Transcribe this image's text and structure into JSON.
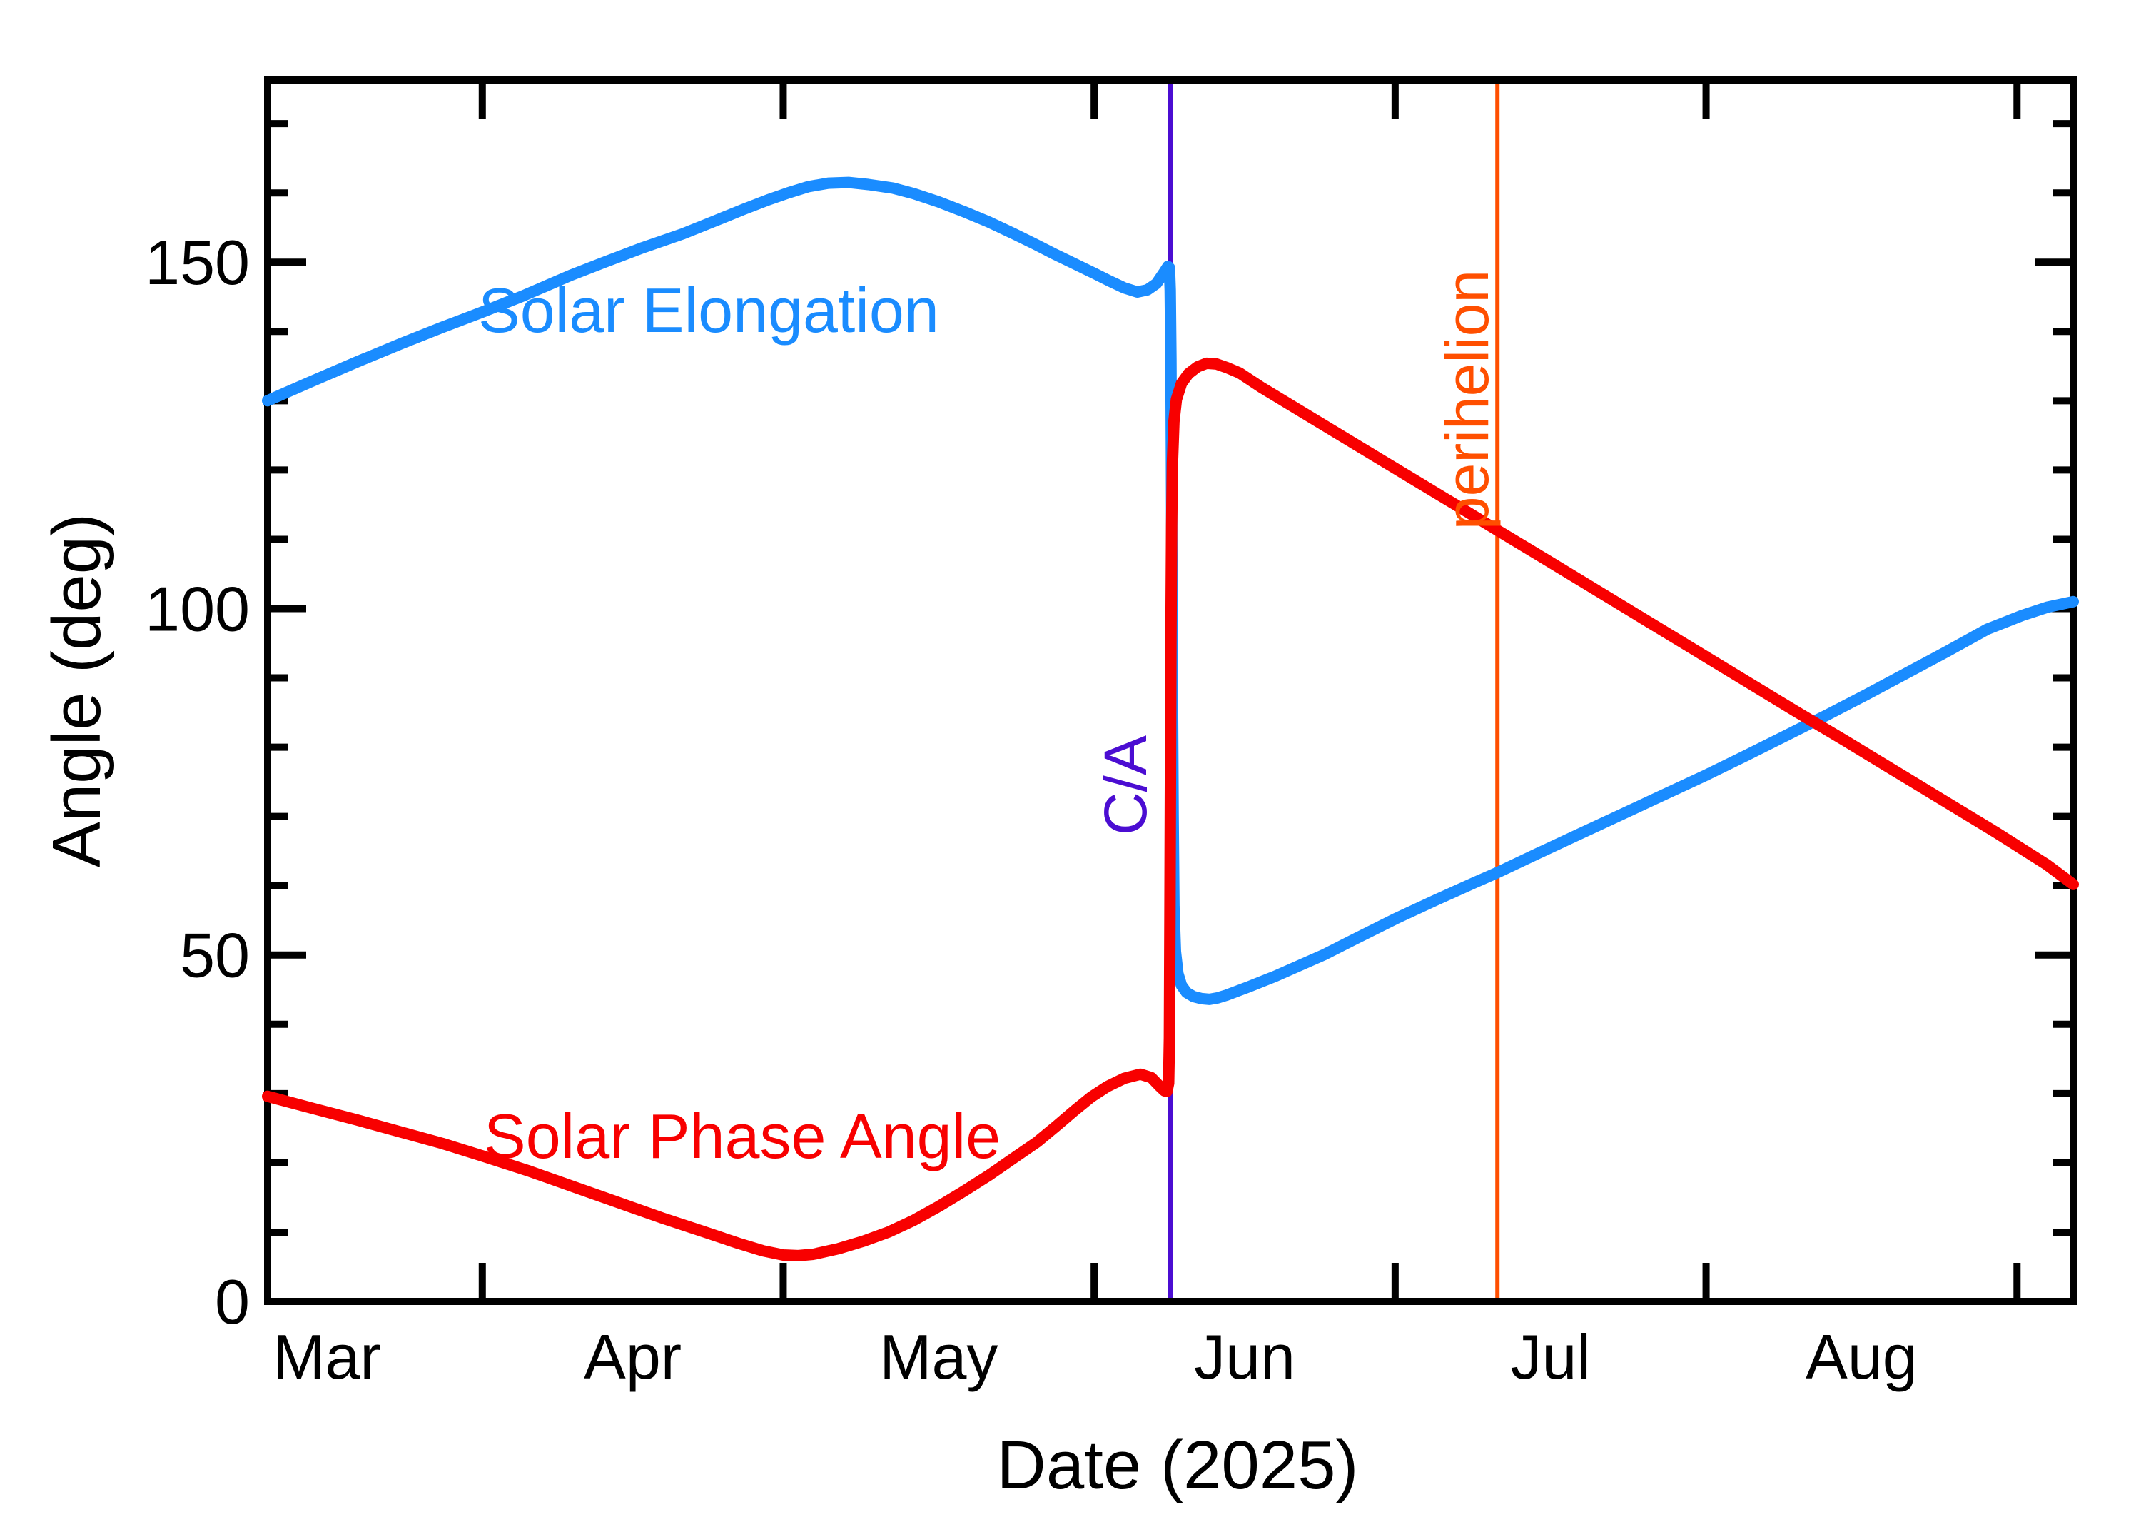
{
  "chart_data": {
    "type": "line",
    "title": "",
    "xlabel": "Date (2025)",
    "ylabel": "Angle (deg)",
    "x_unit": "days since 2025-03-01",
    "x_range_days": [
      9.6,
      189.6
    ],
    "ylim": [
      0,
      176.3
    ],
    "grid": "off",
    "legend_position": "inline-curve-labels",
    "background_color": "#ffffff",
    "axis_color": "#000000",
    "y_major_ticks": [
      0,
      50,
      100,
      150
    ],
    "y_major_tick_labels": [
      "0",
      "50",
      "100",
      "150"
    ],
    "y_minor_ticks": [
      10,
      20,
      30,
      40,
      60,
      70,
      80,
      90,
      110,
      120,
      130,
      140,
      160,
      170
    ],
    "month_boundary_days": [
      31,
      61,
      92,
      122,
      153,
      184
    ],
    "month_labels": [
      {
        "label": "Mar",
        "mid_day": 15.5
      },
      {
        "label": "Apr",
        "mid_day": 46
      },
      {
        "label": "May",
        "mid_day": 76.5
      },
      {
        "label": "Jun",
        "mid_day": 107
      },
      {
        "label": "Jul",
        "mid_day": 137.5
      },
      {
        "label": "Aug",
        "mid_day": 168.5
      }
    ],
    "events": [
      {
        "label": "C/A",
        "day": 99.6,
        "color": "#4b0dd2"
      },
      {
        "label": "perihelion",
        "day": 132.2,
        "color": "#ff4f00"
      }
    ],
    "series": [
      {
        "name": "Solar Elongation",
        "color": "#1a8cff",
        "points": [
          [
            9.6,
            130
          ],
          [
            14,
            132.8
          ],
          [
            18.5,
            135.6
          ],
          [
            23,
            138.3
          ],
          [
            27,
            140.6
          ],
          [
            31,
            142.8
          ],
          [
            35,
            145.1
          ],
          [
            39.8,
            148.1
          ],
          [
            43,
            149.9
          ],
          [
            47,
            152.1
          ],
          [
            51,
            154.1
          ],
          [
            54.1,
            155.9
          ],
          [
            57,
            157.6
          ],
          [
            59.5,
            159.0
          ],
          [
            61.5,
            160.0
          ],
          [
            63.5,
            160.9
          ],
          [
            65.5,
            161.4
          ],
          [
            67.5,
            161.5
          ],
          [
            69.5,
            161.2
          ],
          [
            71.9,
            160.7
          ],
          [
            74,
            159.9
          ],
          [
            76.5,
            158.7
          ],
          [
            79,
            157.3
          ],
          [
            81.5,
            155.8
          ],
          [
            84,
            154.1
          ],
          [
            86.1,
            152.6
          ],
          [
            88,
            151.2
          ],
          [
            90,
            149.8
          ],
          [
            92,
            148.4
          ],
          [
            93.5,
            147.3
          ],
          [
            95,
            146.3
          ],
          [
            96.3,
            145.7
          ],
          [
            97.3,
            146.0
          ],
          [
            98.2,
            146.9
          ],
          [
            99.0,
            148.6
          ],
          [
            99.35,
            149.4
          ],
          [
            99.5,
            149.2
          ],
          [
            99.58,
            146
          ],
          [
            99.65,
            136
          ],
          [
            99.7,
            122
          ],
          [
            99.75,
            105
          ],
          [
            99.8,
            88
          ],
          [
            99.87,
            70
          ],
          [
            99.95,
            57
          ],
          [
            100.1,
            50.5
          ],
          [
            100.35,
            47.3
          ],
          [
            100.7,
            45.6
          ],
          [
            101.2,
            44.6
          ],
          [
            101.9,
            44.0
          ],
          [
            102.7,
            43.7
          ],
          [
            103.5,
            43.6
          ],
          [
            104.3,
            43.8
          ],
          [
            105.2,
            44.2
          ],
          [
            107.4,
            45.4
          ],
          [
            110,
            46.9
          ],
          [
            112.5,
            48.5
          ],
          [
            115,
            50.1
          ],
          [
            118,
            52.3
          ],
          [
            122,
            55.2
          ],
          [
            126,
            57.9
          ],
          [
            130,
            60.5
          ],
          [
            132.2,
            61.9
          ],
          [
            136,
            64.5
          ],
          [
            140,
            67.2
          ],
          [
            144,
            69.9
          ],
          [
            148,
            72.6
          ],
          [
            152.9,
            75.9
          ],
          [
            157,
            78.8
          ],
          [
            161,
            81.7
          ],
          [
            165,
            84.6
          ],
          [
            169,
            87.6
          ],
          [
            173,
            90.7
          ],
          [
            177,
            93.8
          ],
          [
            181,
            97.0
          ],
          [
            184.5,
            99.0
          ],
          [
            187,
            100.2
          ],
          [
            189.6,
            101.0
          ]
        ]
      },
      {
        "name": "Solar Phase Angle",
        "color": "#f80000",
        "points": [
          [
            9.6,
            29.6
          ],
          [
            14,
            27.9
          ],
          [
            18.5,
            26.2
          ],
          [
            23,
            24.4
          ],
          [
            27,
            22.8
          ],
          [
            31,
            21.0
          ],
          [
            35.5,
            18.9
          ],
          [
            40,
            16.6
          ],
          [
            44.5,
            14.3
          ],
          [
            49,
            12.0
          ],
          [
            53,
            10.1
          ],
          [
            56.5,
            8.4
          ],
          [
            59,
            7.3
          ],
          [
            61,
            6.7
          ],
          [
            62.5,
            6.6
          ],
          [
            64,
            6.8
          ],
          [
            66.5,
            7.6
          ],
          [
            69,
            8.7
          ],
          [
            71.5,
            10.0
          ],
          [
            74,
            11.7
          ],
          [
            76.5,
            13.7
          ],
          [
            79,
            15.9
          ],
          [
            81.5,
            18.2
          ],
          [
            84,
            20.7
          ],
          [
            86.3,
            23.0
          ],
          [
            88.3,
            25.4
          ],
          [
            90,
            27.5
          ],
          [
            91.7,
            29.5
          ],
          [
            93.3,
            31.0
          ],
          [
            95,
            32.2
          ],
          [
            96.6,
            32.8
          ],
          [
            97.7,
            32.3
          ],
          [
            98.5,
            31.1
          ],
          [
            99.0,
            30.4
          ],
          [
            99.25,
            30.3
          ],
          [
            99.42,
            31.5
          ],
          [
            99.5,
            38
          ],
          [
            99.55,
            55
          ],
          [
            99.6,
            75
          ],
          [
            99.65,
            95
          ],
          [
            99.72,
            112
          ],
          [
            99.8,
            121
          ],
          [
            99.95,
            127
          ],
          [
            100.2,
            130.2
          ],
          [
            100.7,
            132.5
          ],
          [
            101.4,
            133.9
          ],
          [
            102.3,
            134.9
          ],
          [
            103.2,
            135.4
          ],
          [
            104.2,
            135.3
          ],
          [
            105.2,
            134.8
          ],
          [
            106.5,
            134.0
          ],
          [
            108.7,
            131.9
          ],
          [
            112,
            129.0
          ],
          [
            116,
            125.5
          ],
          [
            120,
            122.0
          ],
          [
            124,
            118.5
          ],
          [
            128,
            115.0
          ],
          [
            132.2,
            111.3
          ],
          [
            136.9,
            107.2
          ],
          [
            141.9,
            102.8
          ],
          [
            146.9,
            98.4
          ],
          [
            151.9,
            94.0
          ],
          [
            156.9,
            89.6
          ],
          [
            161.9,
            85.2
          ],
          [
            166.9,
            80.9
          ],
          [
            171.9,
            76.5
          ],
          [
            176.9,
            72.1
          ],
          [
            181.9,
            67.7
          ],
          [
            186.9,
            63.1
          ],
          [
            189.6,
            60.2
          ]
        ]
      }
    ]
  }
}
